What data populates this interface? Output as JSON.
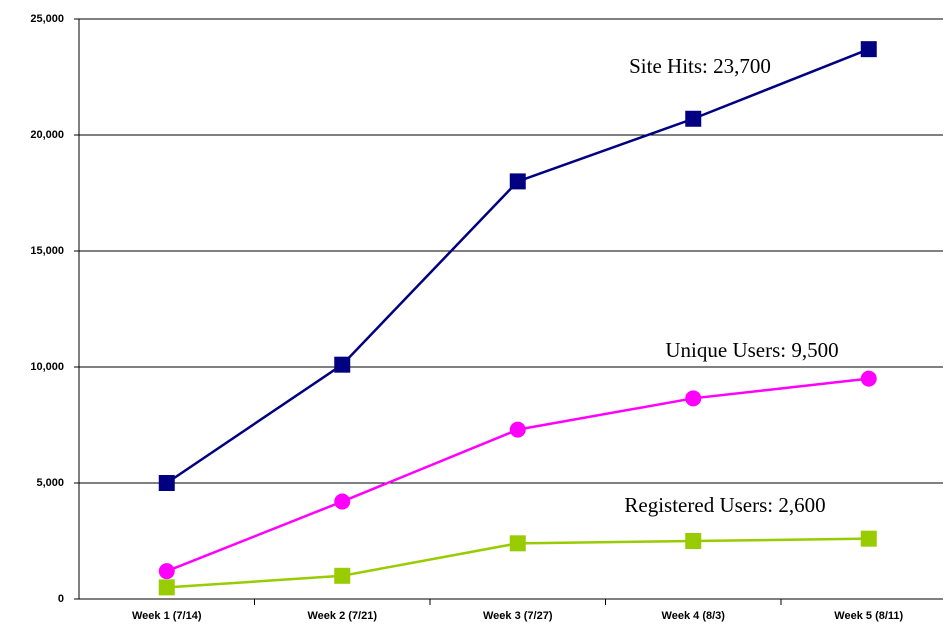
{
  "chart_data": {
    "type": "line",
    "categories": [
      "Week 1 (7/14)",
      "Week 2 (7/21)",
      "Week 3 (7/27)",
      "Week 4 (8/3)",
      "Week 5 (8/11)"
    ],
    "series": [
      {
        "color": "#000080",
        "marker": "square",
        "values": [
          5000,
          10100,
          18000,
          20700,
          23700
        ]
      },
      {
        "color": "#ff00ff",
        "marker": "circle",
        "values": [
          1200,
          4200,
          7300,
          8650,
          9500
        ]
      },
      {
        "color": "#99cc00",
        "marker": "square",
        "values": [
          500,
          1000,
          2400,
          2500,
          2600
        ]
      }
    ],
    "annotations": [
      "Site Hits: 23,700",
      "Unique Users: 9,500",
      "Registered Users: 2,600"
    ],
    "ylim": [
      0,
      25000
    ],
    "yticks": [
      0,
      {
        "value": 5000,
        "label": "5,000"
      },
      {
        "value": 10000,
        "label": "10,000"
      },
      {
        "value": 15000,
        "label": "15,000"
      },
      {
        "value": 20000,
        "label": "20,000"
      },
      {
        "value": 25000,
        "label": "25,000"
      }
    ],
    "grid": true
  }
}
